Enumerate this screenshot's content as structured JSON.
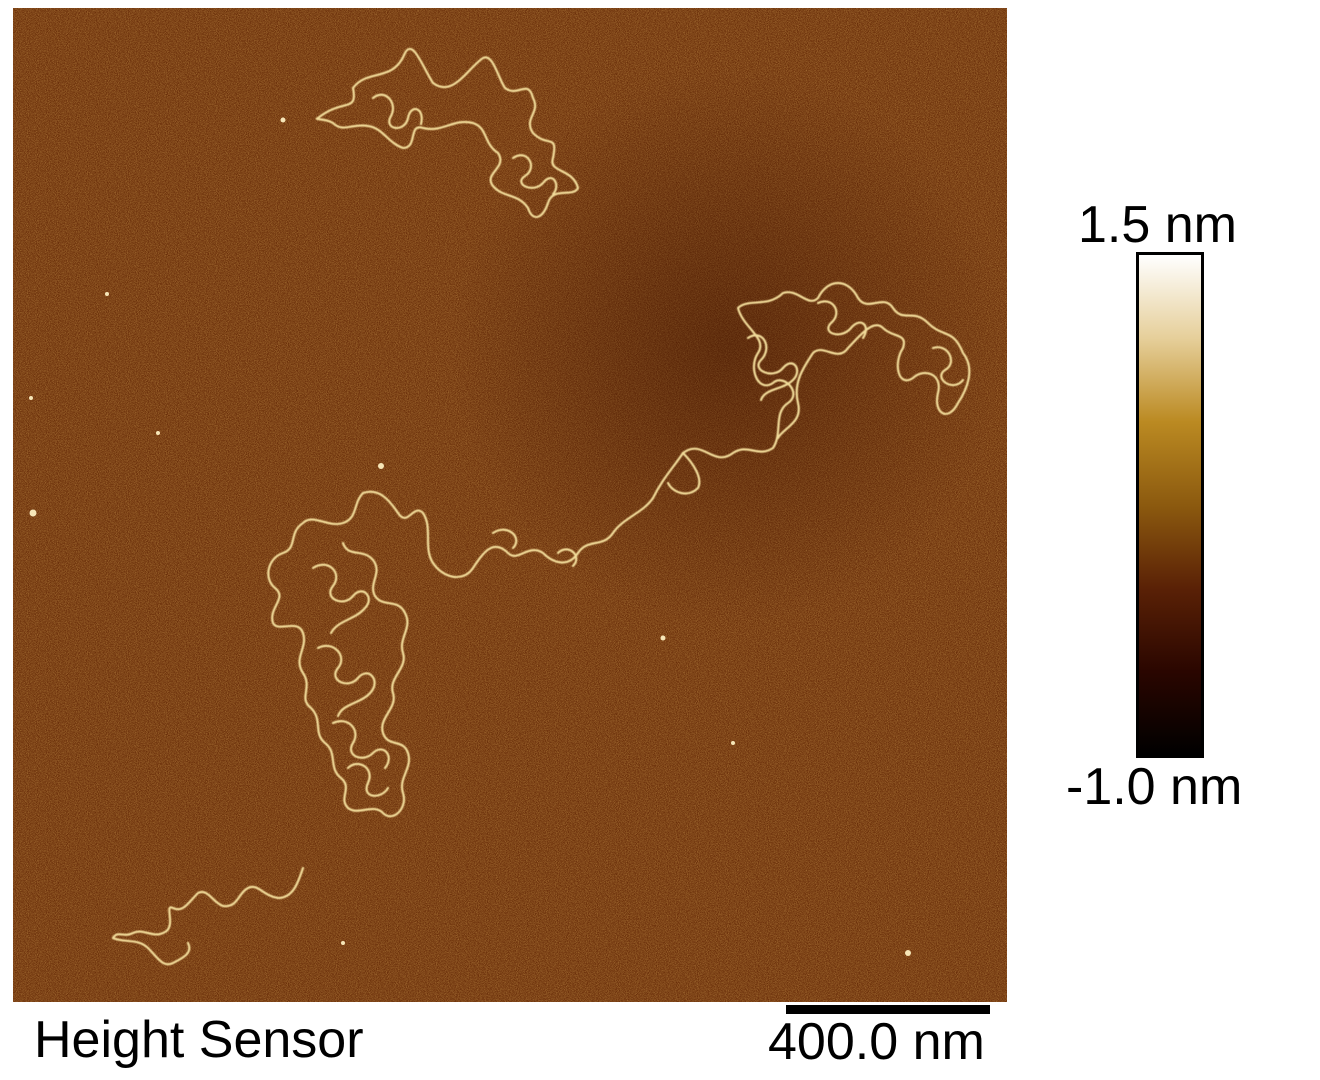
{
  "image": {
    "type": "afm-height-map",
    "channel_label": "Height Sensor",
    "scale_bar_label": "400.0 nm",
    "colorbar": {
      "max_label": "1.5 nm",
      "min_label": "-1.0 nm",
      "colormap": [
        "#000000",
        "#2a0600",
        "#5a2106",
        "#8c5a0f",
        "#bb8a22",
        "#e6cf9a",
        "#ffffff"
      ]
    },
    "colors": {
      "background_substrate": "#6b2f0a",
      "strand": "#f2dc9a"
    }
  }
}
